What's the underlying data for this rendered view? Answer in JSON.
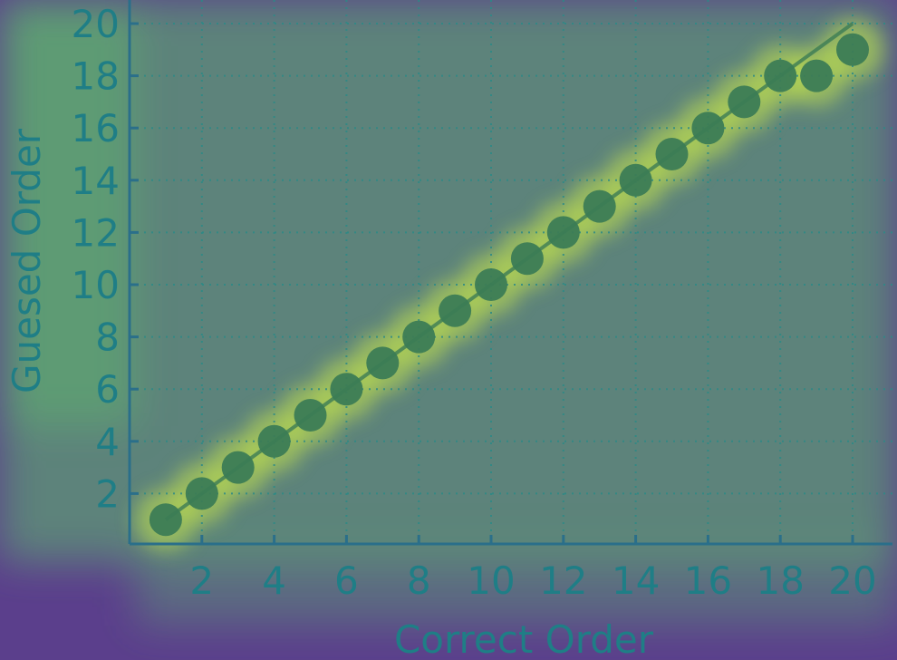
{
  "chart_data": {
    "type": "scatter",
    "xlabel": "Correct Order",
    "ylabel": "Guesed Order",
    "xlim": [
      0,
      21
    ],
    "ylim": [
      0,
      21
    ],
    "x_ticks": [
      2,
      4,
      6,
      8,
      10,
      12,
      14,
      16,
      18,
      20
    ],
    "y_ticks": [
      2,
      4,
      6,
      8,
      10,
      12,
      14,
      16,
      18,
      20
    ],
    "grid": true,
    "reference_line": {
      "x": [
        1,
        20
      ],
      "y": [
        1,
        20
      ]
    },
    "series": [
      {
        "x": [
          1,
          2,
          3,
          4,
          5,
          6,
          7,
          8,
          9,
          10,
          11,
          12,
          13,
          14,
          15,
          16,
          17,
          18,
          19,
          20
        ],
        "y": [
          1,
          2,
          3,
          4,
          5,
          6,
          7,
          8,
          9,
          10,
          11,
          12,
          13,
          14,
          15,
          16,
          17,
          18,
          18,
          19
        ]
      }
    ]
  },
  "colors": {
    "background": "#5b3f8c",
    "heat": "#5fc86a",
    "hot": "#c7e64a",
    "grid": "#2c8a86",
    "axis": "#2a6f8a",
    "marker": "#3c7c55",
    "line": "#3c7c55",
    "text": "#1f7e86"
  }
}
